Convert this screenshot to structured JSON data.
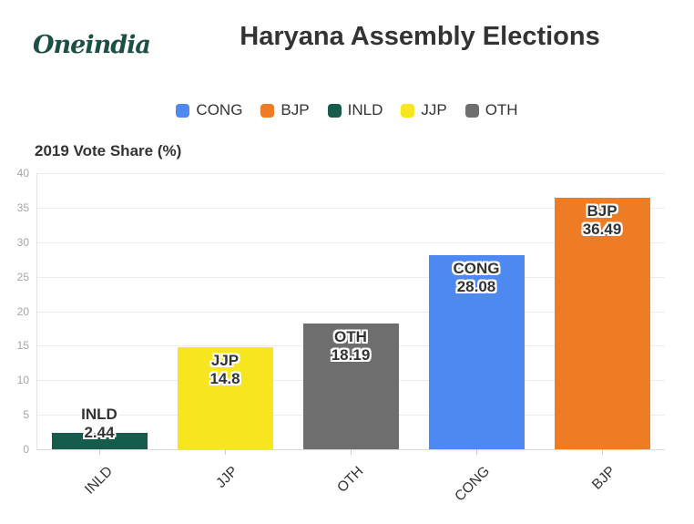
{
  "header": {
    "logo_text": "Oneindia",
    "title": "Haryana Assembly Elections"
  },
  "theme": {
    "logo_color": "#1d4f45",
    "text_color": "#333333",
    "grid_color": "#ececec",
    "axis_color": "#d9d9d9",
    "ytick_color": "#a6a6a6",
    "label_outline_color": "#ffffff",
    "background": "#ffffff"
  },
  "chart_data": {
    "type": "bar",
    "title": "Haryana Assembly Elections",
    "subtitle": "2019 Vote Share (%)",
    "categories": [
      "INLD",
      "JJP",
      "OTH",
      "CONG",
      "BJP"
    ],
    "values": [
      2.44,
      14.8,
      18.19,
      28.08,
      36.49
    ],
    "value_labels": [
      "2.44",
      "14.8",
      "18.19",
      "28.08",
      "36.49"
    ],
    "bar_colors": [
      "#155c4c",
      "#f6e51f",
      "#6e6e6e",
      "#4e89f1",
      "#ee7c25"
    ],
    "xlabel": "",
    "ylabel": "",
    "ylim": [
      0,
      40
    ],
    "ytick_step": 5,
    "ytick_labels": [
      "0",
      "5",
      "10",
      "15",
      "20",
      "25",
      "30",
      "35",
      "40"
    ],
    "grid": "horizontal",
    "legend_position": "top-center",
    "legend": [
      {
        "label": "CONG",
        "color": "#4e89f1"
      },
      {
        "label": "BJP",
        "color": "#ee7c25"
      },
      {
        "label": "INLD",
        "color": "#155c4c"
      },
      {
        "label": "JJP",
        "color": "#f6e51f"
      },
      {
        "label": "OTH",
        "color": "#6e6e6e"
      }
    ]
  }
}
